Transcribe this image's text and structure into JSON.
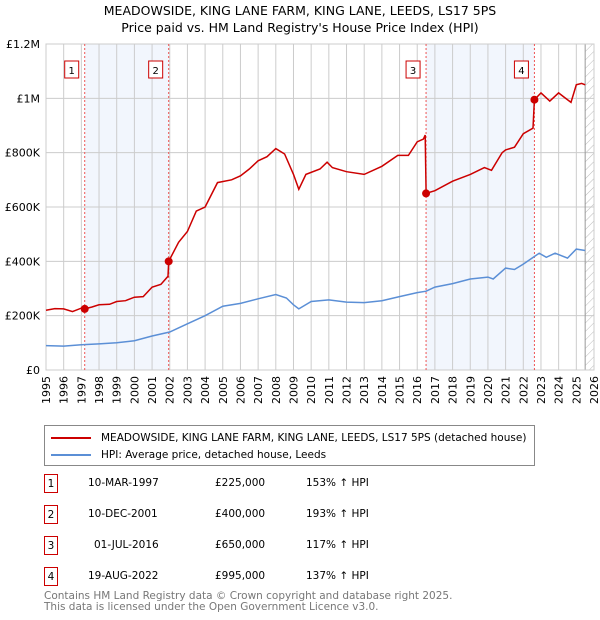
{
  "title": "MEADOWSIDE, KING LANE FARM, KING LANE, LEEDS, LS17 5PS",
  "subtitle": "Price paid vs. HM Land Registry's House Price Index (HPI)",
  "chart_data": {
    "type": "line",
    "title": "MEADOWSIDE, KING LANE FARM, KING LANE, LEEDS, LS17 5PS",
    "subtitle": "Price paid vs. HM Land Registry's House Price Index (HPI)",
    "xlim": [
      1995,
      2026
    ],
    "ylim": [
      0,
      1200000
    ],
    "x_ticks": [
      1995,
      1996,
      1997,
      1998,
      1999,
      2000,
      2001,
      2002,
      2003,
      2004,
      2005,
      2006,
      2007,
      2008,
      2009,
      2010,
      2011,
      2012,
      2013,
      2014,
      2015,
      2016,
      2017,
      2018,
      2019,
      2020,
      2021,
      2022,
      2023,
      2024,
      2025,
      2026
    ],
    "y_ticks": [
      0,
      200000,
      400000,
      600000,
      800000,
      1000000,
      1200000
    ],
    "y_tick_labels": [
      "£0",
      "£200K",
      "£400K",
      "£600K",
      "£800K",
      "£1M",
      "£1.2M"
    ],
    "grid": true,
    "forecast_hatch_from": 2025.5,
    "shaded_periods": [
      [
        1997.19,
        2001.94
      ],
      [
        2016.5,
        2022.63
      ]
    ],
    "series": [
      {
        "name": "MEADOWSIDE, KING LANE FARM, KING LANE, LEEDS, LS17 5PS (detached house)",
        "color": "#cc0000",
        "points": [
          [
            1995,
            220
          ],
          [
            1995.5,
            226
          ],
          [
            1996,
            225
          ],
          [
            1996.5,
            215
          ],
          [
            1997,
            228
          ],
          [
            1997.19,
            225
          ],
          [
            1997.6,
            232
          ],
          [
            1998,
            240
          ],
          [
            1998.6,
            242
          ],
          [
            1999,
            252
          ],
          [
            1999.5,
            255
          ],
          [
            2000,
            268
          ],
          [
            2000.5,
            270
          ],
          [
            2001,
            305
          ],
          [
            2001.5,
            315
          ],
          [
            2001.9,
            345
          ],
          [
            2001.94,
            400
          ],
          [
            2002.5,
            470
          ],
          [
            2003,
            510
          ],
          [
            2003.5,
            585
          ],
          [
            2004,
            600
          ],
          [
            2004.7,
            690
          ],
          [
            2005.5,
            700
          ],
          [
            2006,
            715
          ],
          [
            2006.5,
            740
          ],
          [
            2007,
            770
          ],
          [
            2007.5,
            785
          ],
          [
            2008,
            815
          ],
          [
            2008.5,
            795
          ],
          [
            2009,
            720
          ],
          [
            2009.3,
            665
          ],
          [
            2009.7,
            720
          ],
          [
            2010.5,
            740
          ],
          [
            2010.9,
            765
          ],
          [
            2011.2,
            745
          ],
          [
            2012,
            730
          ],
          [
            2013,
            720
          ],
          [
            2014,
            750
          ],
          [
            2014.9,
            790
          ],
          [
            2015.5,
            790
          ],
          [
            2016,
            840
          ],
          [
            2016.35,
            850
          ],
          [
            2016.45,
            865
          ],
          [
            2016.5,
            650
          ],
          [
            2017,
            660
          ],
          [
            2018,
            695
          ],
          [
            2019,
            720
          ],
          [
            2019.8,
            745
          ],
          [
            2020.2,
            735
          ],
          [
            2020.8,
            800
          ],
          [
            2021,
            810
          ],
          [
            2021.5,
            820
          ],
          [
            2022,
            870
          ],
          [
            2022.55,
            890
          ],
          [
            2022.63,
            995
          ],
          [
            2023,
            1020
          ],
          [
            2023.5,
            990
          ],
          [
            2024,
            1020
          ],
          [
            2024.3,
            1005
          ],
          [
            2024.7,
            985
          ],
          [
            2025,
            1050
          ],
          [
            2025.3,
            1055
          ],
          [
            2025.5,
            1050
          ]
        ]
      },
      {
        "name": "HPI: Average price, detached house, Leeds",
        "color": "#5b8fd6",
        "points": [
          [
            1995,
            90
          ],
          [
            1996,
            88
          ],
          [
            1997,
            93
          ],
          [
            1998,
            96
          ],
          [
            1999,
            100
          ],
          [
            2000,
            108
          ],
          [
            2001,
            125
          ],
          [
            2002,
            140
          ],
          [
            2003,
            170
          ],
          [
            2004,
            200
          ],
          [
            2005,
            235
          ],
          [
            2006,
            245
          ],
          [
            2007,
            262
          ],
          [
            2008,
            278
          ],
          [
            2008.6,
            265
          ],
          [
            2009,
            240
          ],
          [
            2009.3,
            225
          ],
          [
            2010,
            252
          ],
          [
            2011,
            258
          ],
          [
            2012,
            250
          ],
          [
            2013,
            248
          ],
          [
            2014,
            255
          ],
          [
            2015,
            270
          ],
          [
            2016,
            285
          ],
          [
            2016.5,
            290
          ],
          [
            2017,
            305
          ],
          [
            2018,
            318
          ],
          [
            2019,
            335
          ],
          [
            2020,
            342
          ],
          [
            2020.3,
            335
          ],
          [
            2021,
            375
          ],
          [
            2021.5,
            370
          ],
          [
            2022,
            390
          ],
          [
            2022.9,
            430
          ],
          [
            2023.3,
            415
          ],
          [
            2023.8,
            430
          ],
          [
            2024.5,
            412
          ],
          [
            2025,
            445
          ],
          [
            2025.5,
            440
          ]
        ]
      }
    ],
    "y_units_multiplier": 1000,
    "sales": [
      {
        "label": "1",
        "x": 1997.19,
        "value": 225000
      },
      {
        "label": "2",
        "x": 2001.94,
        "value": 400000
      },
      {
        "label": "3",
        "x": 2016.5,
        "value": 650000
      },
      {
        "label": "4",
        "x": 2022.63,
        "value": 995000
      }
    ]
  },
  "legend": {
    "red": "MEADOWSIDE, KING LANE FARM, KING LANE, LEEDS, LS17 5PS (detached house)",
    "blue": "HPI: Average price, detached house, Leeds"
  },
  "transactions": [
    {
      "num": "1",
      "date": "10-MAR-1997",
      "price": "£225,000",
      "hpi": "153% ↑ HPI"
    },
    {
      "num": "2",
      "date": "10-DEC-2001",
      "price": "£400,000",
      "hpi": "193% ↑ HPI"
    },
    {
      "num": "3",
      "date": "01-JUL-2016",
      "price": "£650,000",
      "hpi": "117% ↑ HPI"
    },
    {
      "num": "4",
      "date": "19-AUG-2022",
      "price": "£995,000",
      "hpi": "137% ↑ HPI"
    }
  ],
  "footer": {
    "line1": "Contains HM Land Registry data © Crown copyright and database right 2025.",
    "line2": "This data is licensed under the Open Government Licence v3.0."
  }
}
